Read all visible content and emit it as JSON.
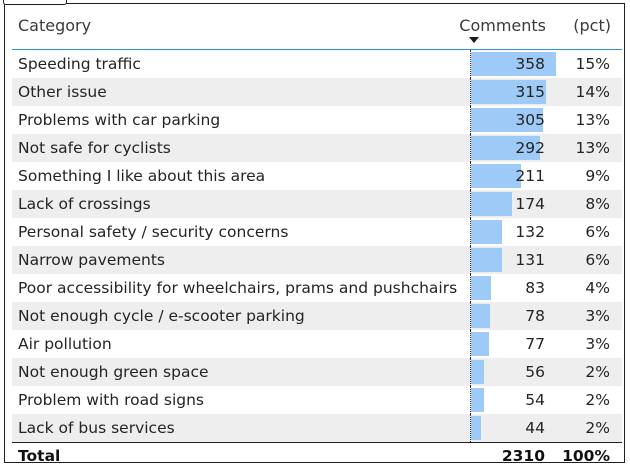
{
  "table": {
    "headers": {
      "category": "Category",
      "comments": "Comments",
      "pct": "(pct)"
    },
    "sort": "comments-descending",
    "bar_color": "#9dcaf6",
    "header_rule_color": "#2f8fd6",
    "rows": [
      {
        "category": "Speeding traffic",
        "comments": "358",
        "pct": "15%"
      },
      {
        "category": "Other issue",
        "comments": "315",
        "pct": "14%"
      },
      {
        "category": "Problems with car parking",
        "comments": "305",
        "pct": "13%"
      },
      {
        "category": "Not safe for cyclists",
        "comments": "292",
        "pct": "13%"
      },
      {
        "category": "Something I like about this area",
        "comments": "211",
        "pct": "9%"
      },
      {
        "category": "Lack of crossings",
        "comments": "174",
        "pct": "8%"
      },
      {
        "category": "Personal safety / security concerns",
        "comments": "132",
        "pct": "6%"
      },
      {
        "category": "Narrow pavements",
        "comments": "131",
        "pct": "6%"
      },
      {
        "category": "Poor accessibility for wheelchairs, prams and pushchairs",
        "comments": "83",
        "pct": "4%"
      },
      {
        "category": "Not enough cycle / e-scooter parking",
        "comments": "78",
        "pct": "3%"
      },
      {
        "category": "Air pollution",
        "comments": "77",
        "pct": "3%"
      },
      {
        "category": "Not enough green space",
        "comments": "56",
        "pct": "2%"
      },
      {
        "category": "Problem with road signs",
        "comments": "54",
        "pct": "2%"
      },
      {
        "category": "Lack of bus services",
        "comments": "44",
        "pct": "2%"
      }
    ],
    "total": {
      "label": "Total",
      "comments": "2310",
      "pct": "100%"
    }
  }
}
